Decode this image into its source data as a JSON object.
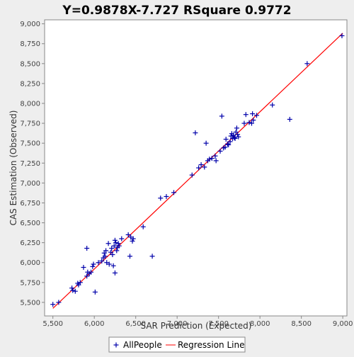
{
  "chart_data": {
    "type": "scatter",
    "title": "Y=0.9878X-7.727    RSquare 0.9772",
    "xlabel": "SAR Prediction (Expected)",
    "ylabel": "CAS Estimation (Observed)",
    "xlim": [
      5400,
      9050
    ],
    "ylim": [
      5330,
      9050
    ],
    "x_ticks": [
      "5,500",
      "6,000",
      "6,500",
      "7,000",
      "7,500",
      "8,000",
      "8,500",
      "9,000"
    ],
    "x_tick_values": [
      5500,
      6000,
      6500,
      7000,
      7500,
      8000,
      8500,
      9000
    ],
    "y_ticks": [
      "5,500",
      "5,750",
      "6,000",
      "6,250",
      "6,500",
      "6,750",
      "7,000",
      "7,250",
      "7,500",
      "7,750",
      "8,000",
      "8,250",
      "8,500",
      "8,750",
      "9,000"
    ],
    "y_tick_values": [
      5500,
      5750,
      6000,
      6250,
      6500,
      6750,
      7000,
      7250,
      7500,
      7750,
      8000,
      8250,
      8500,
      8750,
      9000
    ],
    "grid": false,
    "legend_position": "bottom",
    "series": [
      {
        "name": "AllPeople",
        "kind": "scatter",
        "marker": "plus",
        "color": "#0000aa",
        "points": [
          [
            5500,
            5475
          ],
          [
            5570,
            5500
          ],
          [
            5730,
            5680
          ],
          [
            5740,
            5650
          ],
          [
            5770,
            5640
          ],
          [
            5800,
            5740
          ],
          [
            5810,
            5720
          ],
          [
            5830,
            5750
          ],
          [
            5870,
            5940
          ],
          [
            5910,
            5830
          ],
          [
            5920,
            5880
          ],
          [
            5910,
            6180
          ],
          [
            5940,
            5860
          ],
          [
            5960,
            5880
          ],
          [
            5980,
            5950
          ],
          [
            5990,
            5980
          ],
          [
            6010,
            5630
          ],
          [
            6050,
            6000
          ],
          [
            6090,
            6020
          ],
          [
            6110,
            6060
          ],
          [
            6120,
            6120
          ],
          [
            6130,
            6080
          ],
          [
            6140,
            6150
          ],
          [
            6150,
            6000
          ],
          [
            6170,
            6240
          ],
          [
            6180,
            5980
          ],
          [
            6200,
            6130
          ],
          [
            6210,
            6180
          ],
          [
            6220,
            6100
          ],
          [
            6230,
            5960
          ],
          [
            6240,
            6210
          ],
          [
            6250,
            5870
          ],
          [
            6250,
            6280
          ],
          [
            6260,
            6250
          ],
          [
            6270,
            6150
          ],
          [
            6280,
            6190
          ],
          [
            6290,
            6240
          ],
          [
            6300,
            6210
          ],
          [
            6330,
            6300
          ],
          [
            6410,
            6350
          ],
          [
            6430,
            6080
          ],
          [
            6440,
            6320
          ],
          [
            6460,
            6270
          ],
          [
            6470,
            6300
          ],
          [
            6590,
            6450
          ],
          [
            6700,
            6080
          ],
          [
            6800,
            6810
          ],
          [
            6870,
            6830
          ],
          [
            6960,
            6880
          ],
          [
            7180,
            7100
          ],
          [
            7220,
            7630
          ],
          [
            7260,
            7190
          ],
          [
            7290,
            7230
          ],
          [
            7330,
            7200
          ],
          [
            7350,
            7500
          ],
          [
            7370,
            7280
          ],
          [
            7390,
            7300
          ],
          [
            7420,
            7310
          ],
          [
            7460,
            7340
          ],
          [
            7470,
            7280
          ],
          [
            7520,
            7400
          ],
          [
            7540,
            7840
          ],
          [
            7560,
            7440
          ],
          [
            7580,
            7450
          ],
          [
            7590,
            7550
          ],
          [
            7610,
            7490
          ],
          [
            7620,
            7480
          ],
          [
            7640,
            7520
          ],
          [
            7650,
            7590
          ],
          [
            7660,
            7620
          ],
          [
            7670,
            7560
          ],
          [
            7680,
            7600
          ],
          [
            7690,
            7570
          ],
          [
            7700,
            7560
          ],
          [
            7710,
            7640
          ],
          [
            7720,
            7690
          ],
          [
            7730,
            7610
          ],
          [
            7740,
            7580
          ],
          [
            7810,
            7750
          ],
          [
            7830,
            7860
          ],
          [
            7870,
            7760
          ],
          [
            7900,
            7750
          ],
          [
            7910,
            7870
          ],
          [
            7920,
            7790
          ],
          [
            7960,
            7850
          ],
          [
            8150,
            7980
          ],
          [
            8360,
            7800
          ],
          [
            8570,
            8500
          ],
          [
            8990,
            8850
          ]
        ]
      },
      {
        "name": "Regression Line",
        "kind": "line",
        "color": "#ff0000",
        "equation": {
          "slope": 0.9878,
          "intercept": -7.727
        },
        "x_range": [
          5500,
          9000
        ]
      }
    ]
  }
}
